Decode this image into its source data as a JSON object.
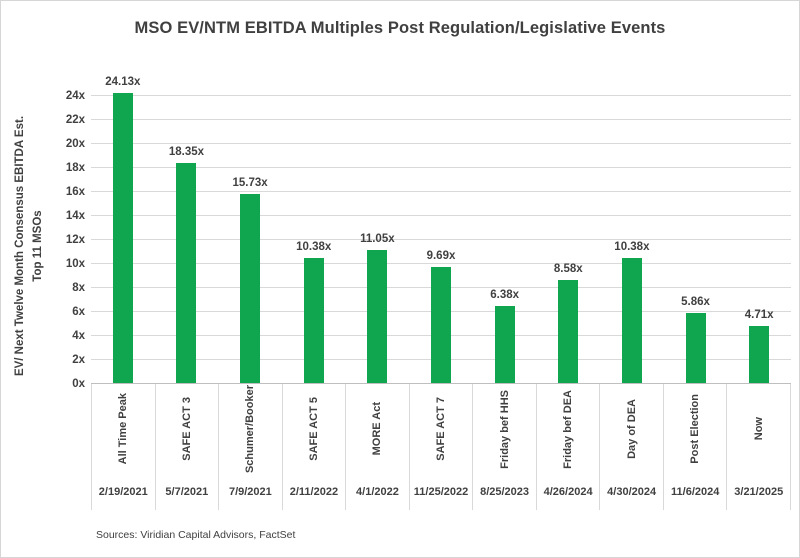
{
  "title": "MSO EV/NTM EBITDA Multiples Post Regulation/Legislative Events",
  "y_axis": {
    "title_line1": "EV/ Next Twelve Month Consensus EBITDA Est.",
    "title_line2": "Top 11 MSOs",
    "ticks": [
      "0x",
      "2x",
      "4x",
      "6x",
      "8x",
      "10x",
      "12x",
      "14x",
      "16x",
      "18x",
      "20x",
      "22x",
      "24x"
    ]
  },
  "source_note": "Sources: Viridian Capital Advisors, FactSet",
  "colors": {
    "bar_green": "#0fa64f",
    "text_dark": "#404040",
    "gridline": "#d9d9d9",
    "axis_line": "#bfbfbf",
    "separator": "#d9d9d9"
  },
  "chart_data": {
    "type": "bar",
    "title": "MSO EV/NTM EBITDA Multiples Post Regulation/Legislative Events",
    "ylabel": "EV/ Next Twelve Month Consensus EBITDA Est. Top 11 MSOs",
    "xlabel": "",
    "ylim": [
      0,
      24
    ],
    "y_tick_step": 2,
    "grid": true,
    "legend_position": "none",
    "categories": [
      "All Time Peak",
      "SAFE ACT 3",
      "Schumer/Booker",
      "SAFE ACT 5",
      "MORE Act",
      "SAFE ACT 7",
      "Friday bef HHS",
      "Friday bef DEA",
      "Day of DEA",
      "Post Election",
      "Now"
    ],
    "x_dates": [
      "2/19/2021",
      "5/7/2021",
      "7/9/2021",
      "2/11/2022",
      "4/1/2022",
      "11/25/2022",
      "8/25/2023",
      "4/26/2024",
      "4/30/2024",
      "11/6/2024",
      "3/21/2025"
    ],
    "values": [
      24.13,
      18.35,
      15.73,
      10.38,
      11.05,
      9.69,
      6.38,
      8.58,
      10.38,
      5.86,
      4.71
    ],
    "value_labels": [
      "24.13x",
      "18.35x",
      "15.73x",
      "10.38x",
      "11.05x",
      "9.69x",
      "6.38x",
      "8.58x",
      "10.38x",
      "5.86x",
      "4.71x"
    ]
  }
}
